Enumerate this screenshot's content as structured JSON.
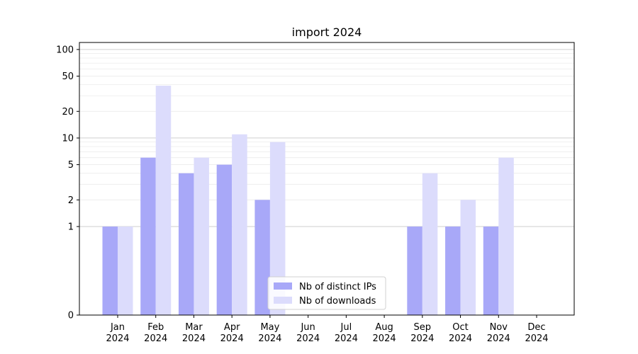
{
  "chart_data": {
    "type": "bar",
    "title": "import 2024",
    "xlabel": "",
    "ylabel": "",
    "y_scale": "symlog",
    "ylim": [
      0,
      120
    ],
    "y_ticks": [
      {
        "value": 0,
        "label": "0"
      },
      {
        "value": 1,
        "label": "1"
      },
      {
        "value": 2,
        "label": "2"
      },
      {
        "value": 5,
        "label": "5"
      },
      {
        "value": 10,
        "label": "10"
      },
      {
        "value": 20,
        "label": "20"
      },
      {
        "value": 50,
        "label": "50"
      },
      {
        "value": 100,
        "label": "100"
      }
    ],
    "grid": true,
    "legend_position": "lower-center",
    "categories": [
      {
        "month": "Jan",
        "year": "2024"
      },
      {
        "month": "Feb",
        "year": "2024"
      },
      {
        "month": "Mar",
        "year": "2024"
      },
      {
        "month": "Apr",
        "year": "2024"
      },
      {
        "month": "May",
        "year": "2024"
      },
      {
        "month": "Jun",
        "year": "2024"
      },
      {
        "month": "Jul",
        "year": "2024"
      },
      {
        "month": "Aug",
        "year": "2024"
      },
      {
        "month": "Sep",
        "year": "2024"
      },
      {
        "month": "Oct",
        "year": "2024"
      },
      {
        "month": "Nov",
        "year": "2024"
      },
      {
        "month": "Dec",
        "year": "2024"
      }
    ],
    "series": [
      {
        "name": "Nb of distinct IPs",
        "color": "#a8a8f8",
        "values": [
          1,
          6,
          4,
          5,
          2,
          0,
          0,
          0,
          1,
          1,
          1,
          0
        ]
      },
      {
        "name": "Nb of downloads",
        "color": "#dcdcfc",
        "values": [
          1,
          39,
          6,
          11,
          9,
          0,
          0,
          0,
          4,
          2,
          6,
          0
        ]
      }
    ]
  }
}
